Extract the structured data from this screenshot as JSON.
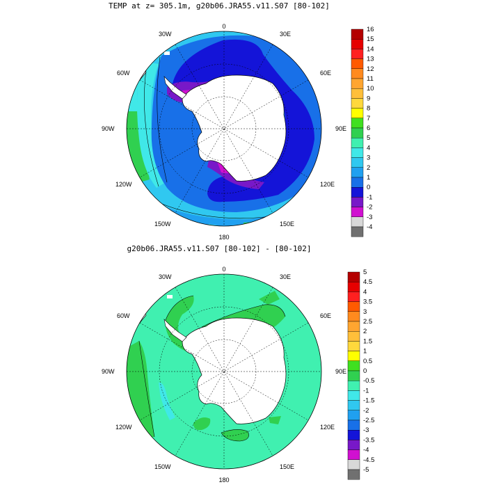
{
  "panels": [
    {
      "title": "TEMP at z= 305.1m, g20b06.JRA55.v11.S07 [80-102]",
      "lon_labels": [
        "0",
        "30E",
        "60E",
        "90E",
        "120E",
        "150E",
        "180",
        "150W",
        "120W",
        "90W",
        "60W",
        "30W"
      ],
      "colorbar": {
        "labels": [
          "16",
          "15",
          "14",
          "13",
          "12",
          "11",
          "10",
          "9",
          "8",
          "7",
          "6",
          "5",
          "4",
          "3",
          "2",
          "1",
          "0",
          "-1",
          "-2",
          "-3",
          "-4"
        ],
        "colors": [
          "#b40000",
          "#e60000",
          "#ff2020",
          "#ff5a00",
          "#ff8a1e",
          "#ffa530",
          "#ffbf3a",
          "#ffd83c",
          "#ffff00",
          "#40e020",
          "#30d050",
          "#40f0b0",
          "#40e8e8",
          "#30c8f0",
          "#20a0f0",
          "#1870e8",
          "#1414d8",
          "#7818c8",
          "#d010d0",
          "#d8d8d8",
          "#707070"
        ]
      }
    },
    {
      "title": "g20b06.JRA55.v11.S07 [80-102] -  [80-102]",
      "lon_labels": [
        "0",
        "30E",
        "60E",
        "90E",
        "120E",
        "150E",
        "180",
        "150W",
        "120W",
        "90W",
        "60W",
        "30W"
      ],
      "colorbar": {
        "labels": [
          "5",
          "4.5",
          "4",
          "3.5",
          "3",
          "2.5",
          "2",
          "1.5",
          "1",
          "0.5",
          "0",
          "-0.5",
          "-1",
          "-1.5",
          "-2",
          "-2.5",
          "-3",
          "-3.5",
          "-4",
          "-4.5",
          "-5"
        ],
        "colors": [
          "#b40000",
          "#e60000",
          "#ff2020",
          "#ff5a00",
          "#ff8a1e",
          "#ffa530",
          "#ffbf3a",
          "#ffd83c",
          "#ffff00",
          "#40e020",
          "#30d050",
          "#40f0b0",
          "#40e8e8",
          "#30c8f0",
          "#20a0f0",
          "#1870e8",
          "#1414d8",
          "#7818c8",
          "#d010d0",
          "#d8d8d8",
          "#707070"
        ]
      }
    }
  ],
  "colors": {
    "land": "#ffffff",
    "outline": "#000000"
  }
}
